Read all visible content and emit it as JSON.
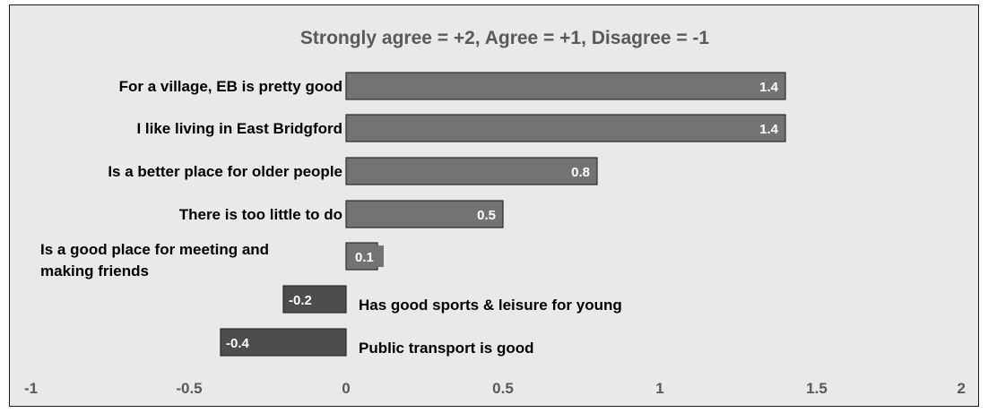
{
  "chart_data": {
    "type": "bar",
    "orientation": "horizontal",
    "title": "Strongly agree = +2, Agree = +1, Disagree = -1",
    "categories": [
      "For a village, EB is pretty good",
      "I like living in East Bridgford",
      "Is a better place for older people",
      "There is too little to do",
      "Is a good place for meeting and making friends",
      "Has good sports & leisure for young",
      "Public transport is good"
    ],
    "values": [
      1.4,
      1.4,
      0.8,
      0.5,
      0.1,
      -0.2,
      -0.4
    ],
    "data_labels": [
      "1.4",
      "1.4",
      "0.8",
      "0.5",
      "0.1",
      "-0.2",
      "-0.4"
    ],
    "x_ticks": [
      "-1",
      "-0.5",
      "0",
      "0.5",
      "1",
      "1.5",
      "2"
    ],
    "xlim": [
      -1,
      2
    ],
    "grid": false,
    "legend": "none",
    "colors": {
      "positive_bar": "#737373",
      "negative_bar": "#4d4d4d",
      "bar_border": "#2b2b2b",
      "background": "#e9e9e9"
    }
  }
}
